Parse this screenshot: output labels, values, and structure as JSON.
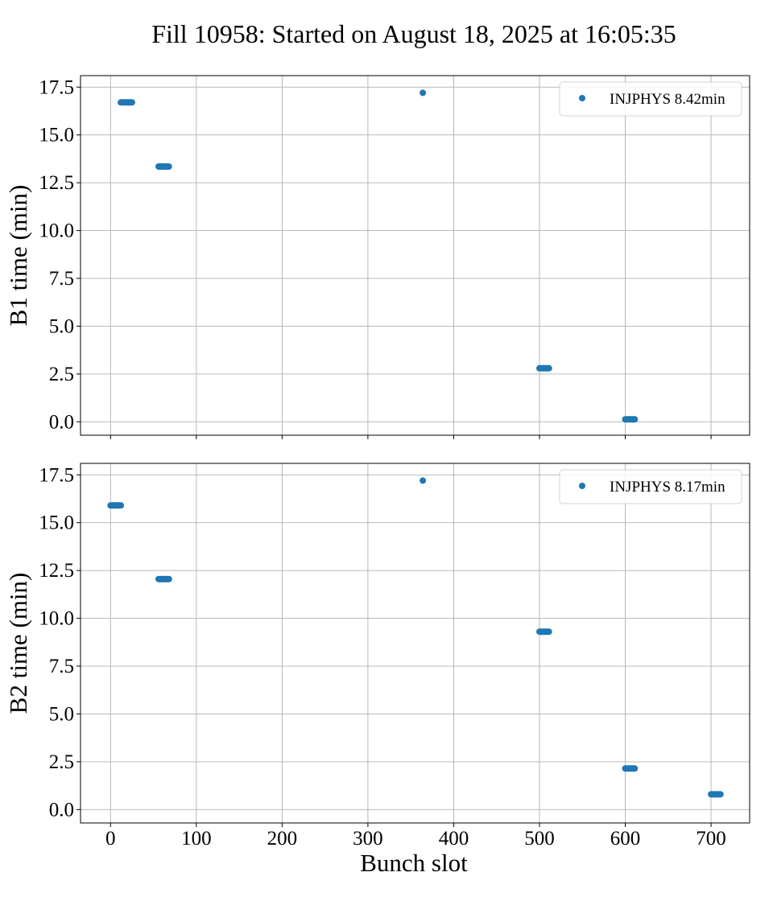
{
  "title": "Fill 10958: Started on August 18, 2025 at 16:05:35",
  "xlabel": "Bunch slot",
  "chart_data": [
    {
      "type": "scatter",
      "ylabel": "B1 time (min)",
      "xlim": [
        -35,
        745
      ],
      "ylim": [
        -0.7,
        18.1
      ],
      "xticks": [
        0,
        100,
        200,
        300,
        400,
        500,
        600,
        700
      ],
      "yticks": [
        "0.0",
        "2.5",
        "5.0",
        "7.5",
        "10.0",
        "12.5",
        "15.0",
        "17.5"
      ],
      "show_xtick_labels": false,
      "grid": true,
      "legend_position": "upper right",
      "series": [
        {
          "name": "INJPHYS 8.42min",
          "color": "#1f77b4",
          "points": [
            {
              "x_from": 12,
              "x_to": 25,
              "y": 16.7
            },
            {
              "x_from": 56,
              "x_to": 68,
              "y": 13.35
            },
            {
              "x_from": 364,
              "x_to": 364,
              "y": 17.2
            },
            {
              "x_from": 500,
              "x_to": 511,
              "y": 2.8
            },
            {
              "x_from": 600,
              "x_to": 611,
              "y": 0.13
            }
          ]
        }
      ]
    },
    {
      "type": "scatter",
      "ylabel": "B2 time (min)",
      "xlim": [
        -35,
        745
      ],
      "ylim": [
        -0.7,
        18.1
      ],
      "xticks": [
        0,
        100,
        200,
        300,
        400,
        500,
        600,
        700
      ],
      "yticks": [
        "0.0",
        "2.5",
        "5.0",
        "7.5",
        "10.0",
        "12.5",
        "15.0",
        "17.5"
      ],
      "show_xtick_labels": true,
      "grid": true,
      "legend_position": "upper right",
      "series": [
        {
          "name": "INJPHYS 8.17min",
          "color": "#1f77b4",
          "points": [
            {
              "x_from": 0,
              "x_to": 12,
              "y": 15.9
            },
            {
              "x_from": 56,
              "x_to": 68,
              "y": 12.05
            },
            {
              "x_from": 364,
              "x_to": 364,
              "y": 17.2
            },
            {
              "x_from": 500,
              "x_to": 511,
              "y": 9.3
            },
            {
              "x_from": 600,
              "x_to": 611,
              "y": 2.15
            },
            {
              "x_from": 700,
              "x_to": 711,
              "y": 0.8
            }
          ]
        }
      ]
    }
  ]
}
